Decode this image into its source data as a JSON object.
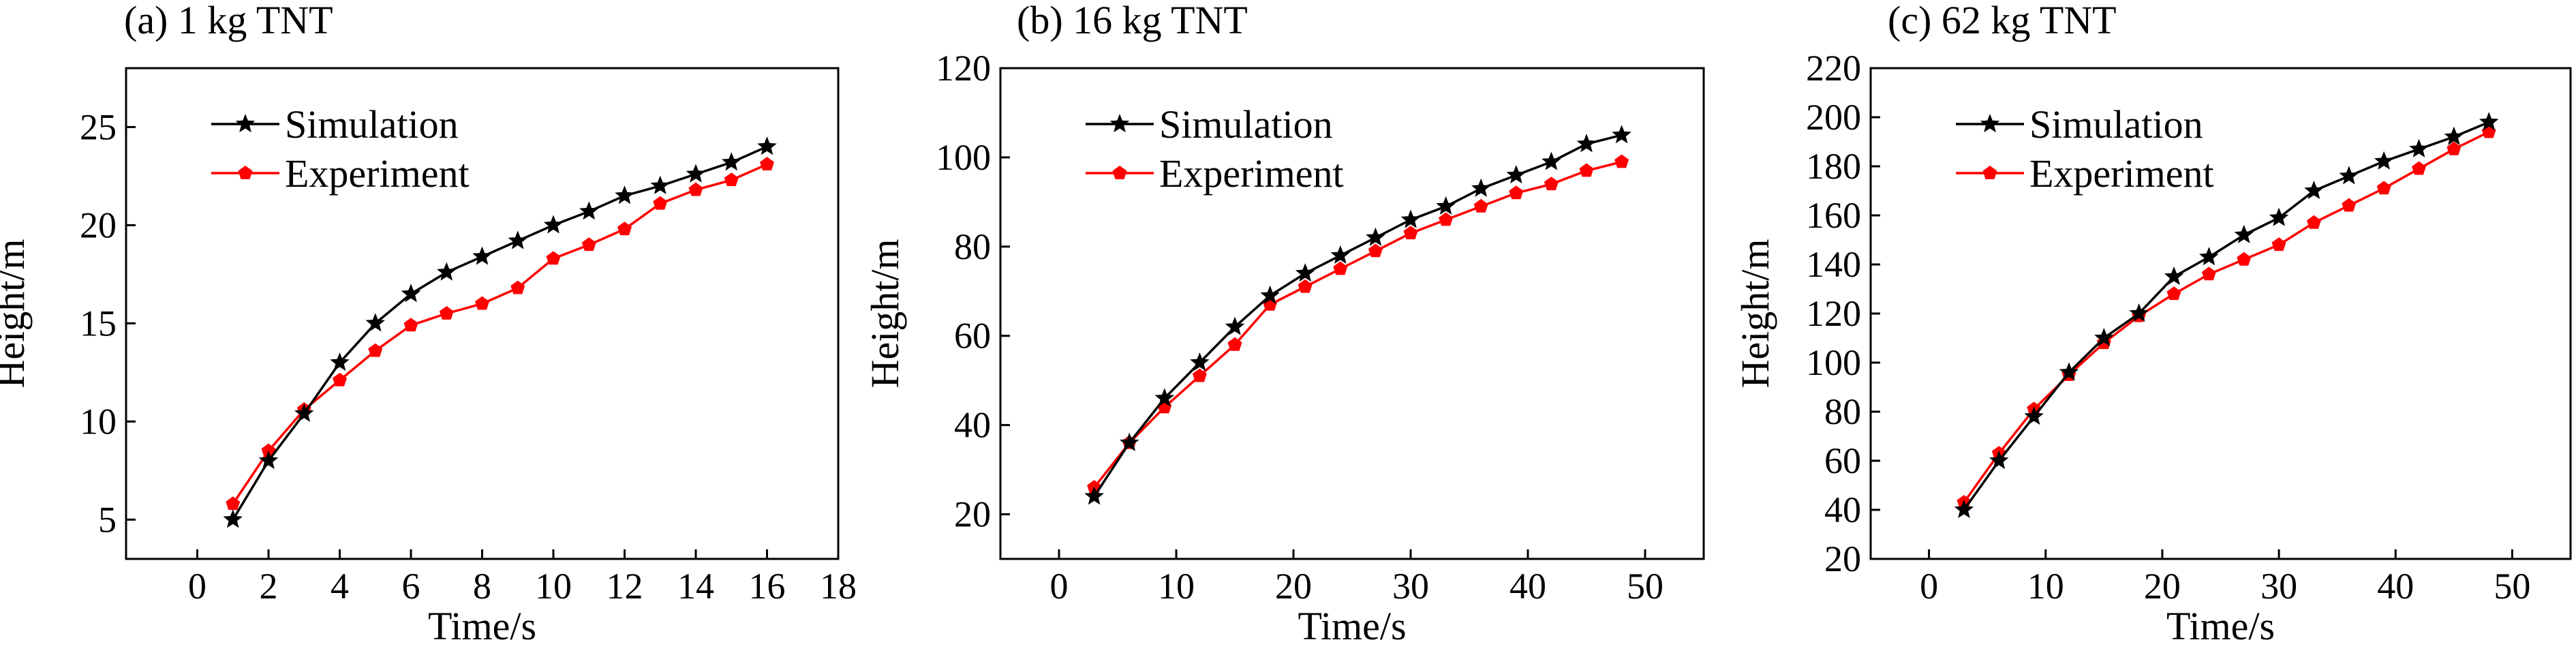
{
  "chart_data": [
    {
      "type": "line",
      "title": "(a) 1 kg TNT",
      "xlabel": "Time/s",
      "ylabel": "Height/m",
      "xlim": [
        -2,
        18
      ],
      "ylim": [
        3,
        28
      ],
      "xticks": [
        0,
        2,
        4,
        6,
        8,
        10,
        12,
        14,
        16,
        18
      ],
      "yticks": [
        5,
        10,
        15,
        20,
        25
      ],
      "grid": false,
      "legend": "top-left",
      "series": [
        {
          "name": "Simulation",
          "color": "#000000",
          "marker": "star",
          "x": [
            1,
            2,
            3,
            4,
            5,
            6,
            7,
            8,
            9,
            10,
            11,
            12,
            13,
            14,
            15,
            16
          ],
          "y": [
            5.0,
            8.0,
            10.4,
            13.0,
            15.0,
            16.5,
            17.6,
            18.4,
            19.2,
            20.0,
            20.7,
            21.5,
            22.0,
            22.6,
            23.2,
            24.0
          ]
        },
        {
          "name": "Experiment",
          "color": "#ff0000",
          "marker": "pentagon",
          "x": [
            1,
            2,
            3,
            4,
            5,
            6,
            7,
            8,
            9,
            10,
            11,
            12,
            13,
            14,
            15,
            16
          ],
          "y": [
            5.8,
            8.5,
            10.6,
            12.1,
            13.6,
            14.9,
            15.5,
            16.0,
            16.8,
            18.3,
            19.0,
            19.8,
            21.1,
            21.8,
            22.3,
            23.1
          ]
        }
      ]
    },
    {
      "type": "line",
      "title": "(b) 16 kg TNT",
      "xlabel": "Time/s",
      "ylabel": "Height/m",
      "xlim": [
        -5,
        55
      ],
      "ylim": [
        10,
        120
      ],
      "xticks": [
        0,
        10,
        20,
        30,
        40,
        50
      ],
      "yticks": [
        20,
        40,
        60,
        80,
        100,
        120
      ],
      "grid": false,
      "legend": "top-left",
      "series": [
        {
          "name": "Simulation",
          "color": "#000000",
          "marker": "star",
          "x": [
            3,
            6,
            9,
            12,
            15,
            18,
            21,
            24,
            27,
            30,
            33,
            36,
            39,
            42,
            45,
            48
          ],
          "y": [
            24,
            36,
            46,
            54,
            62,
            69,
            74,
            78,
            82,
            86,
            89,
            93,
            96,
            99,
            103,
            105
          ]
        },
        {
          "name": "Experiment",
          "color": "#ff0000",
          "marker": "pentagon",
          "x": [
            3,
            6,
            9,
            12,
            15,
            18,
            21,
            24,
            27,
            30,
            33,
            36,
            39,
            42,
            45,
            48
          ],
          "y": [
            26,
            36,
            44,
            51,
            58,
            67,
            71,
            75,
            79,
            83,
            86,
            89,
            92,
            94,
            97,
            99
          ]
        }
      ]
    },
    {
      "type": "line",
      "title": "(c) 62 kg TNT",
      "xlabel": "Time/s",
      "ylabel": "Height/m",
      "xlim": [
        -5,
        55
      ],
      "ylim": [
        20,
        220
      ],
      "xticks": [
        0,
        10,
        20,
        30,
        40,
        50
      ],
      "yticks": [
        20,
        40,
        60,
        80,
        100,
        120,
        140,
        160,
        180,
        200,
        220
      ],
      "grid": false,
      "legend": "top-left",
      "series": [
        {
          "name": "Simulation",
          "color": "#000000",
          "marker": "star",
          "x": [
            3,
            6,
            9,
            12,
            15,
            18,
            21,
            24,
            27,
            30,
            33,
            36,
            39,
            42,
            45,
            48
          ],
          "y": [
            40,
            60,
            78,
            96,
            110,
            120,
            135,
            143,
            152,
            159,
            170,
            176,
            182,
            187,
            192,
            198
          ]
        },
        {
          "name": "Experiment",
          "color": "#ff0000",
          "marker": "pentagon",
          "x": [
            3,
            6,
            9,
            12,
            15,
            18,
            21,
            24,
            27,
            30,
            33,
            36,
            39,
            42,
            45,
            48
          ],
          "y": [
            43,
            63,
            81,
            95,
            108,
            119,
            128,
            136,
            142,
            148,
            157,
            164,
            171,
            179,
            187,
            194
          ]
        }
      ]
    }
  ]
}
